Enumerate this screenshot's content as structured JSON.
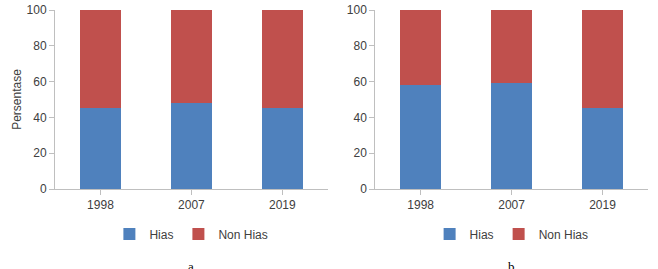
{
  "chart_data": [
    {
      "type": "bar",
      "title": "a",
      "y_label": "Persentase",
      "categories": [
        "1998",
        "2007",
        "2019"
      ],
      "series": [
        {
          "name": "Hias",
          "color": "#4f81bd",
          "values": [
            45,
            48,
            45
          ]
        },
        {
          "name": "Non Hias",
          "color": "#c0504d",
          "values": [
            55,
            52,
            55
          ]
        }
      ],
      "stacked": true,
      "ylim": [
        0,
        100
      ],
      "yticks": [
        0,
        20,
        40,
        60,
        80,
        100
      ],
      "grid": false,
      "legend": "bottom"
    },
    {
      "type": "bar",
      "title": "b",
      "categories": [
        "1998",
        "2007",
        "2019"
      ],
      "series": [
        {
          "name": "Hias",
          "color": "#4f81bd",
          "values": [
            58,
            59,
            45
          ]
        },
        {
          "name": "Non Hias",
          "color": "#c0504d",
          "values": [
            42,
            41,
            55
          ]
        }
      ],
      "stacked": true,
      "ylim": [
        0,
        100
      ],
      "yticks": [
        0,
        20,
        40,
        60,
        80,
        100
      ],
      "grid": false,
      "legend": "bottom"
    }
  ]
}
